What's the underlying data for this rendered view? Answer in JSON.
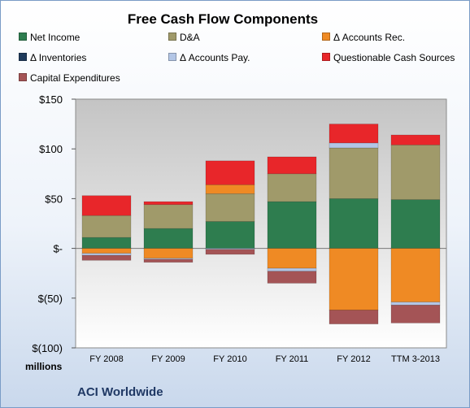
{
  "chart_data": {
    "type": "bar",
    "stacked": true,
    "title": "Free Cash Flow Components",
    "categories": [
      "FY 2008",
      "FY 2009",
      "FY 2010",
      "FY 2011",
      "FY 2012",
      "TTM 3-2013"
    ],
    "ylim": [
      -100,
      150
    ],
    "yticks": [
      150,
      100,
      50,
      0,
      -50,
      -100
    ],
    "ytick_labels": [
      "$150",
      "$100",
      "$50",
      "$-",
      "$(50)",
      "$(100)"
    ],
    "units_label": "millions",
    "legend_position": "top",
    "grid": false,
    "series": [
      {
        "name": "Net Income",
        "color": "#2e7d4f",
        "values": [
          11,
          20,
          27,
          47,
          50,
          49
        ]
      },
      {
        "name": "D&A",
        "color": "#a09a6a",
        "values": [
          22,
          24,
          28,
          28,
          51,
          55
        ]
      },
      {
        "name": "Δ Accounts Rec.",
        "color": "#ef8a24",
        "values": [
          -5,
          -10,
          9,
          -20,
          -62,
          -54
        ]
      },
      {
        "name": "Δ Inventories",
        "color": "#1f3b5c",
        "values": [
          0,
          0,
          0,
          0,
          0,
          0
        ]
      },
      {
        "name": "Δ Accounts Pay.",
        "color": "#b3c6e6",
        "values": [
          -2,
          -1,
          -1,
          -3,
          5,
          -3
        ]
      },
      {
        "name": "Questionable Cash Sources",
        "color": "#e8262a",
        "values": [
          20,
          3,
          24,
          17,
          19,
          10
        ]
      },
      {
        "name": "Capital Expenditures",
        "color": "#a45456",
        "values": [
          -5,
          -3,
          -5,
          -12,
          -14,
          -18
        ]
      }
    ]
  },
  "company": "ACI Worldwide"
}
